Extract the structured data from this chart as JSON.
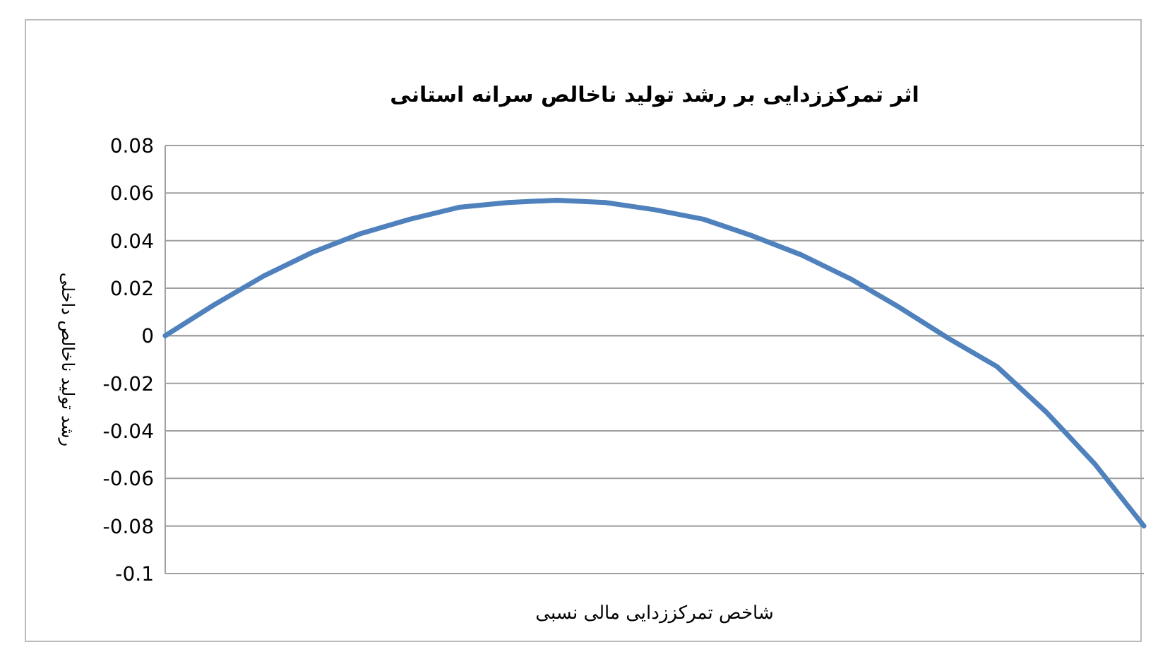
{
  "chart_data": {
    "type": "line",
    "title": "اثر تمرکززدایی بر رشد تولید ناخالص سرانه استانی",
    "xlabel": "شاخص تمرکززدایی مالی نسبی",
    "ylabel": "رشد تولید ناخالص داخلی",
    "categories": [
      null,
      null,
      null,
      null,
      null,
      null,
      null,
      null,
      null,
      null,
      null,
      null,
      null,
      null,
      null,
      null,
      null,
      null,
      null,
      null,
      null
    ],
    "series": [
      {
        "color": "#4f81bd",
        "values": [
          0,
          0.013,
          0.025,
          0.035,
          0.043,
          0.049,
          0.054,
          0.056,
          0.057,
          0.056,
          0.053,
          0.049,
          0.042,
          0.034,
          0.024,
          0.012,
          -0.001,
          -0.013,
          -0.032,
          -0.054,
          -0.08
        ]
      }
    ],
    "ylim": [
      -0.1,
      0.08
    ],
    "yticks": [
      -0.1,
      -0.08,
      -0.06,
      -0.04,
      -0.02,
      0,
      0.02,
      0.04,
      0.06,
      0.08
    ],
    "grid": "y",
    "tick_labels": "y",
    "marker": "none",
    "line_style": "solid"
  }
}
